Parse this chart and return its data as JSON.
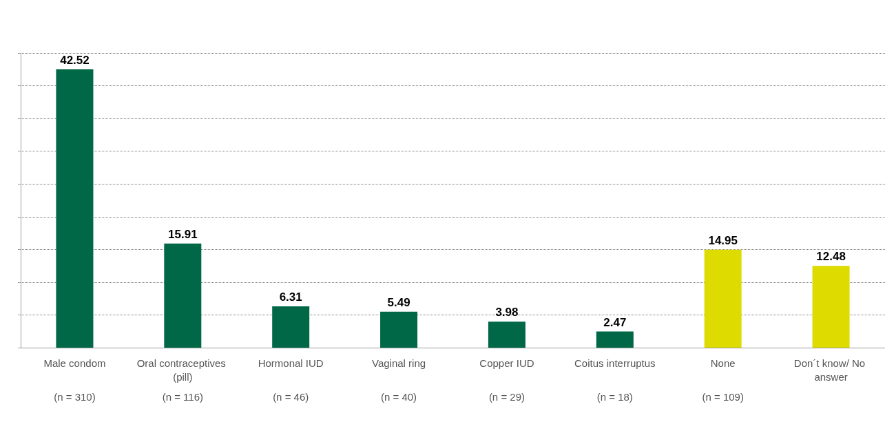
{
  "chart_data": {
    "type": "bar",
    "categories": [
      "Male condom",
      "Oral contraceptives (pill)",
      "Hormonal IUD",
      "Vaginal ring",
      "Copper IUD",
      "Coitus interruptus",
      "None",
      "Don´t know/ No answer"
    ],
    "values": [
      42.52,
      15.91,
      6.31,
      5.49,
      3.98,
      2.47,
      14.95,
      12.48
    ],
    "colors": [
      "#006847",
      "#006847",
      "#006847",
      "#006847",
      "#006847",
      "#006847",
      "#dedb00",
      "#dedb00"
    ],
    "data_labels": true,
    "ylim": [
      0,
      45
    ],
    "yticks": [
      {
        "value": 0,
        "label": null
      },
      {
        "value": 5,
        "label": null
      },
      {
        "value": 10,
        "label": null
      },
      {
        "value": 15,
        "label": null
      },
      {
        "value": 20,
        "label": null
      },
      {
        "value": 25,
        "label": null
      },
      {
        "value": 30,
        "label": null
      },
      {
        "value": 35,
        "label": null
      },
      {
        "value": 40,
        "label": null
      },
      {
        "value": 45,
        "label": null
      }
    ],
    "grid": "y",
    "tick_labels": "x",
    "annotations": [
      "(n = 310)",
      "(n = 116)",
      "(n = 46)",
      "(n = 40)",
      "(n = 29)",
      "(n = 18)",
      "(n = 109)"
    ]
  }
}
